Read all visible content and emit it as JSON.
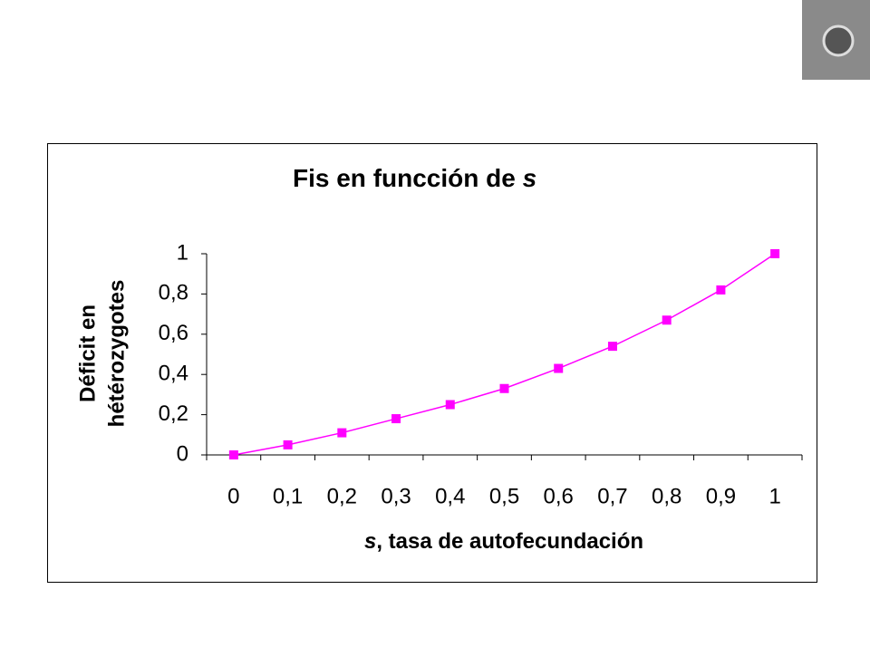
{
  "chart_data": {
    "type": "line",
    "title": "Fis en funcción de",
    "title_symbol": "s",
    "x_label_symbol": "s",
    "x_label": ", tasa de autofecundación",
    "y_label": [
      "Déficit en",
      "hétérozygotes"
    ],
    "categories": [
      "0",
      "0,1",
      "0,2",
      "0,3",
      "0,4",
      "0,5",
      "0,6",
      "0,7",
      "0,8",
      "0,9",
      "1"
    ],
    "series": [
      {
        "name": "Fis",
        "color": "#ff00ff",
        "values": [
          0,
          0.05,
          0.11,
          0.18,
          0.25,
          0.33,
          0.43,
          0.54,
          0.67,
          0.82,
          1
        ]
      }
    ],
    "ylim": [
      0,
      1
    ],
    "yticks": [
      0,
      {
        "value": 0.2,
        "label": "0,2"
      },
      {
        "value": 0.4,
        "label": "0,4"
      },
      {
        "value": 0.6,
        "label": "0,6"
      },
      {
        "value": 0.8,
        "label": "0,8"
      },
      1
    ]
  }
}
